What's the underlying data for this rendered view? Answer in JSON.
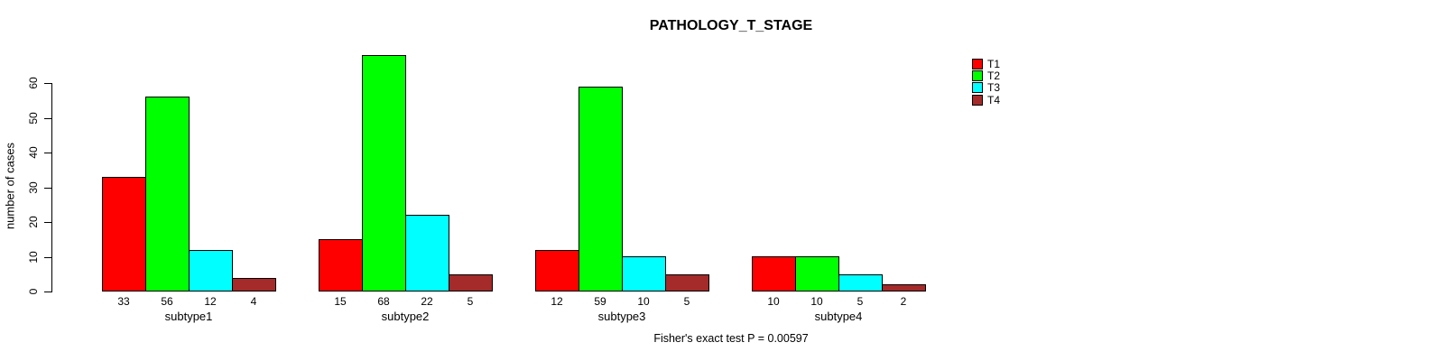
{
  "title": "PATHOLOGY_T_STAGE",
  "caption": "Fisher's exact test P = 0.00597",
  "chart_data": {
    "type": "bar",
    "title": "PATHOLOGY_T_STAGE",
    "xlabel": "",
    "ylabel": "number of cases",
    "categories": [
      "subtype1",
      "subtype2",
      "subtype3",
      "subtype4"
    ],
    "series": [
      {
        "name": "T1",
        "color": "#FF0000",
        "values": [
          33,
          15,
          12,
          10
        ]
      },
      {
        "name": "T2",
        "color": "#00FF00",
        "values": [
          56,
          68,
          59,
          10
        ]
      },
      {
        "name": "T3",
        "color": "#00FFFF",
        "values": [
          12,
          22,
          10,
          5
        ]
      },
      {
        "name": "T4",
        "color": "#A52A2A",
        "values": [
          4,
          5,
          5,
          2
        ]
      }
    ],
    "bar_value_labels": [
      [
        33,
        56,
        12,
        4
      ],
      [
        15,
        68,
        22,
        5
      ],
      [
        12,
        59,
        10,
        5
      ],
      [
        10,
        10,
        5,
        2
      ]
    ],
    "yticks": [
      0,
      10,
      20,
      30,
      40,
      50,
      60
    ],
    "ylim": [
      0,
      68
    ],
    "grid": false,
    "legend_position": "top-right",
    "annotation": "Fisher's exact test P = 0.00597"
  }
}
